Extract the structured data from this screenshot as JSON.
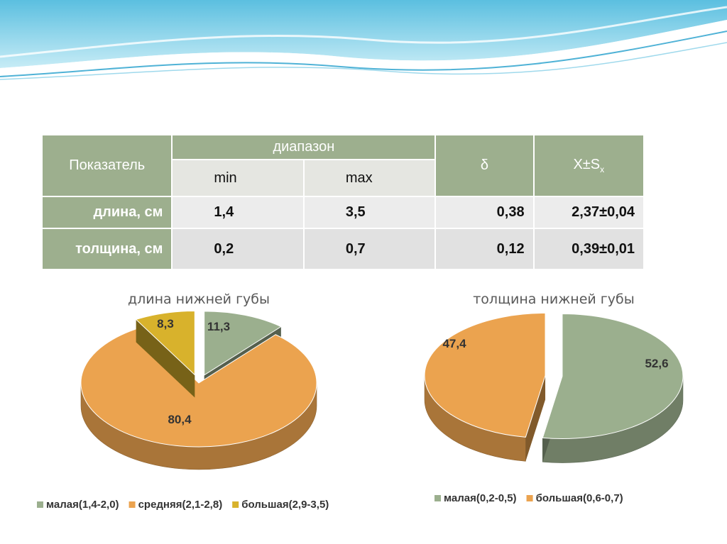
{
  "table": {
    "header": {
      "indicator": "Показатель",
      "range": "диапазон",
      "min": "min",
      "max": "max",
      "delta": "δ",
      "mean_main": "X±S",
      "mean_sub": "x"
    },
    "rows": [
      {
        "label": "длина, см",
        "min": "1,4",
        "max": "3,5",
        "delta": "0,38",
        "mean": "2,37±0,04"
      },
      {
        "label": "толщина, см",
        "min": "0,2",
        "max": "0,7",
        "delta": "0,12",
        "mean": "0,39±0,01"
      }
    ]
  },
  "chart_data": [
    {
      "type": "pie",
      "title": "длина нижней губы",
      "categories": [
        "малая(1,4-2,0)",
        "средняя(2,1-2,8)",
        "большая(2,9-3,5)"
      ],
      "values": [
        11.3,
        80.4,
        8.3
      ],
      "labels": [
        "11,3",
        "80,4",
        "8,3"
      ],
      "colors": [
        "#9baf8e",
        "#eba34f",
        "#d8b22c"
      ],
      "exploded": [
        true,
        false,
        true
      ],
      "legend_position": "bottom"
    },
    {
      "type": "pie",
      "title": "толщина нижней губы",
      "categories": [
        "малая(0,2-0,5)",
        "большая(0,6-0,7)"
      ],
      "values": [
        52.6,
        47.4
      ],
      "labels": [
        "52,6",
        "47,4"
      ],
      "colors": [
        "#9baf8e",
        "#eba34f"
      ],
      "exploded": [
        true,
        true
      ],
      "legend_position": "bottom"
    }
  ]
}
